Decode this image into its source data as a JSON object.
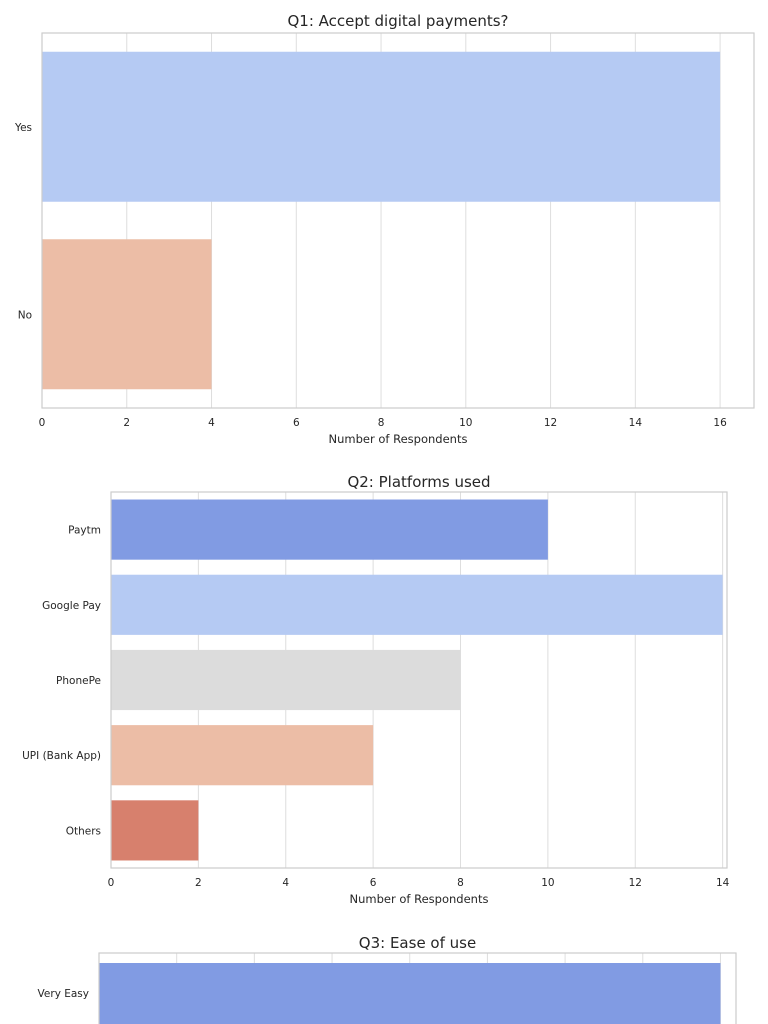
{
  "chart_data": [
    {
      "type": "bar",
      "orientation": "horizontal",
      "title": "Q1: Accept digital payments?",
      "xlabel": "Number of Respondents",
      "ylabel": "",
      "categories": [
        "Yes",
        "No"
      ],
      "values": [
        16,
        4
      ],
      "colors": [
        "#B5CAF3",
        "#ECBDA6"
      ],
      "xlim": [
        0,
        16.8
      ],
      "xticks": [
        0,
        2,
        4,
        6,
        8,
        10,
        12,
        14,
        16
      ],
      "grid": true
    },
    {
      "type": "bar",
      "orientation": "horizontal",
      "title": "Q2: Platforms used",
      "xlabel": "Number of Respondents",
      "ylabel": "",
      "categories": [
        "Paytm",
        "Google Pay",
        "PhonePe",
        "UPI (Bank App)",
        "Others"
      ],
      "values": [
        10,
        14,
        8,
        6,
        2
      ],
      "colors": [
        "#819BE3",
        "#B5CAF3",
        "#DCDCDC",
        "#ECBDA6",
        "#D7806D"
      ],
      "xlim": [
        0,
        14.1
      ],
      "xticks": [
        0,
        2,
        4,
        6,
        8,
        10,
        12,
        14
      ],
      "grid": true
    },
    {
      "type": "bar",
      "orientation": "horizontal",
      "title": "Q3: Ease of use",
      "xlabel": "",
      "ylabel": "",
      "categories": [
        "Very Easy"
      ],
      "values": [
        8
      ],
      "colors": [
        "#819BE3"
      ],
      "xlim": [
        0,
        8.2
      ],
      "xticks": [],
      "grid": true
    }
  ]
}
